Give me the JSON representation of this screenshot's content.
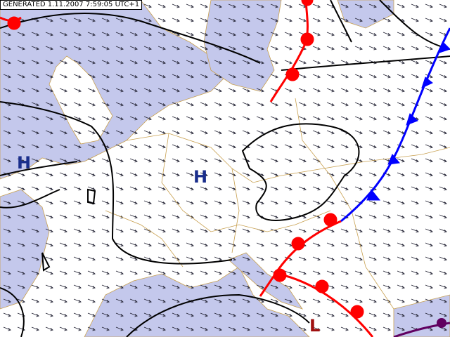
{
  "header": {
    "generated": "GENERATED 1.11.2007 7:59:05 UTC+1"
  },
  "pressure_centers": [
    {
      "label": "H"
    },
    {
      "label": "H"
    },
    {
      "label": "L"
    }
  ]
}
